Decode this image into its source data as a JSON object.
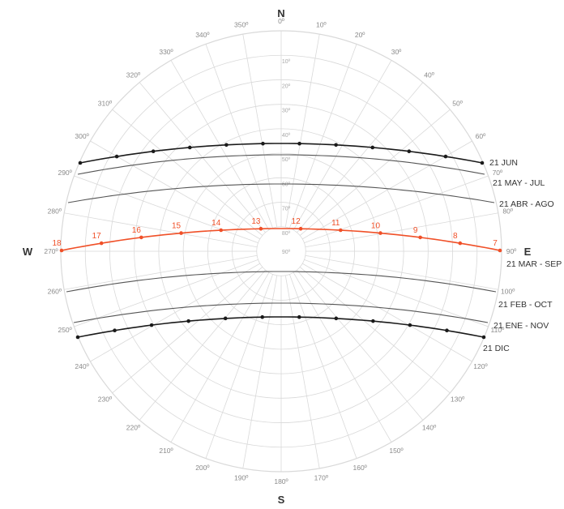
{
  "cardinals": {
    "north": "N",
    "south": "S",
    "east": "E",
    "west": "W"
  },
  "azimuth_labels": [
    "0º",
    "10º",
    "20º",
    "30º",
    "40º",
    "50º",
    "60º",
    "70º",
    "80º",
    "90º",
    "100º",
    "110º",
    "120º",
    "130º",
    "140º",
    "150º",
    "160º",
    "170º",
    "180º",
    "190º",
    "200º",
    "210º",
    "220º",
    "230º",
    "240º",
    "250º",
    "260º",
    "270º",
    "280º",
    "290º",
    "300º",
    "310º",
    "320º",
    "330º",
    "340º",
    "350º"
  ],
  "altitude_labels": [
    "10º",
    "20º",
    "30º",
    "40º",
    "50º",
    "60º",
    "70º",
    "80º",
    "90º"
  ],
  "sun_paths": [
    {
      "label": "21 JUN",
      "color": "#1a1a1a",
      "points": true,
      "highlight": false
    },
    {
      "label": "21 MAY - JUL",
      "color": "#555555",
      "points": false,
      "highlight": false
    },
    {
      "label": "21 ABR - AGO",
      "color": "#555555",
      "points": false,
      "highlight": false
    },
    {
      "label": "21 MAR - SEP",
      "color": "#f05028",
      "points": true,
      "highlight": true
    },
    {
      "label": "21 FEB - OCT",
      "color": "#555555",
      "points": false,
      "highlight": false
    },
    {
      "label": "21 ENE - NOV",
      "color": "#555555",
      "points": false,
      "highlight": false
    },
    {
      "label": "21 DIC",
      "color": "#1a1a1a",
      "points": true,
      "highlight": false
    }
  ],
  "hour_labels": [
    "18",
    "17",
    "16",
    "15",
    "14",
    "13",
    "12",
    "11",
    "10",
    "9",
    "8",
    "7"
  ],
  "colors": {
    "grid": "#d9d9d9",
    "highlight": "#f05028",
    "dark": "#1a1a1a",
    "month": "#555555"
  }
}
